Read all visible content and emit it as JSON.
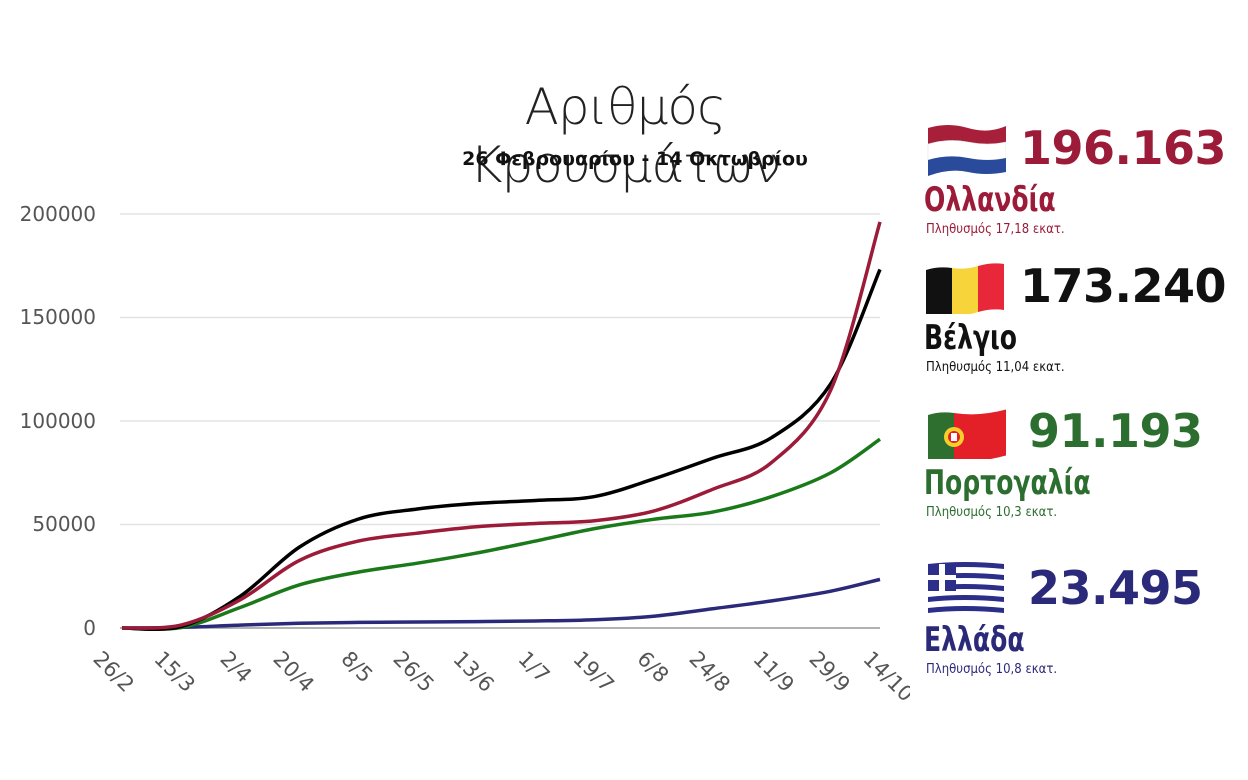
{
  "header": {
    "title": "Αριθμός Κρουσμάτων",
    "subtitle": "26 Φεβρουαρίου - 14 Οκτωβρίου"
  },
  "y_axis": {
    "ticks": [
      "200000",
      "150000",
      "100000",
      "50000",
      "0"
    ]
  },
  "x_axis": {
    "ticks": [
      "26/2",
      "15/3",
      "2/4",
      "20/4",
      "8/5",
      "26/5",
      "13/6",
      "1/7",
      "19/7",
      "6/8",
      "24/8",
      "11/9",
      "29/9",
      "14/10"
    ]
  },
  "countries": [
    {
      "name": "Ολλανδία",
      "total": "196.163",
      "population": "Πληθυσμός 17,18 εκατ.",
      "color": "#9b1b38",
      "flag": "netherlands-flag-icon"
    },
    {
      "name": "Βέλγιο",
      "total": "173.240",
      "population": "Πληθυσμός 11,04 εκατ.",
      "color": "#000000",
      "flag": "belgium-flag-icon"
    },
    {
      "name": "Πορτογαλία",
      "total": "91.193",
      "population": "Πληθυσμός 10,3 εκατ.",
      "color": "#2c6e2f",
      "flag": "portugal-flag-icon"
    },
    {
      "name": "Ελλάδα",
      "total": "23.495",
      "population": "Πληθυσμός 10,8 εκατ.",
      "color": "#2b2a7a",
      "flag": "greece-flag-icon"
    }
  ],
  "chart_data": {
    "type": "line",
    "title": "Αριθμός Κρουσμάτων",
    "subtitle": "26 Φεβρουαρίου - 14 Οκτωβρίου",
    "xlabel": "",
    "ylabel": "",
    "ylim": [
      0,
      200000
    ],
    "grid": true,
    "legend_position": "right (custom cards)",
    "x": [
      "26/2",
      "15/3",
      "2/4",
      "20/4",
      "8/5",
      "26/5",
      "13/6",
      "1/7",
      "19/7",
      "6/8",
      "24/8",
      "11/9",
      "29/9",
      "14/10"
    ],
    "series": [
      {
        "name": "Ολλανδία",
        "color": "#9b1b38",
        "values": [
          0,
          1400,
          13600,
          32600,
          42000,
          45800,
          48900,
          50500,
          51800,
          56500,
          67000,
          80000,
          115000,
          196163
        ]
      },
      {
        "name": "Βέλγιο",
        "color": "#000000",
        "values": [
          0,
          700,
          15300,
          39000,
          52600,
          57500,
          60200,
          61600,
          63500,
          72000,
          82000,
          92000,
          118000,
          173240
        ]
      },
      {
        "name": "Πορτογαλία",
        "color": "#1a7a1a",
        "values": [
          0,
          200,
          9900,
          20800,
          27000,
          31300,
          36200,
          42000,
          48000,
          52500,
          56000,
          63500,
          75000,
          91193
        ]
      },
      {
        "name": "Ελλάδα",
        "color": "#2b2a7a",
        "values": [
          0,
          300,
          1400,
          2300,
          2700,
          2900,
          3100,
          3400,
          4000,
          5700,
          9300,
          13100,
          17800,
          23495
        ]
      }
    ]
  }
}
